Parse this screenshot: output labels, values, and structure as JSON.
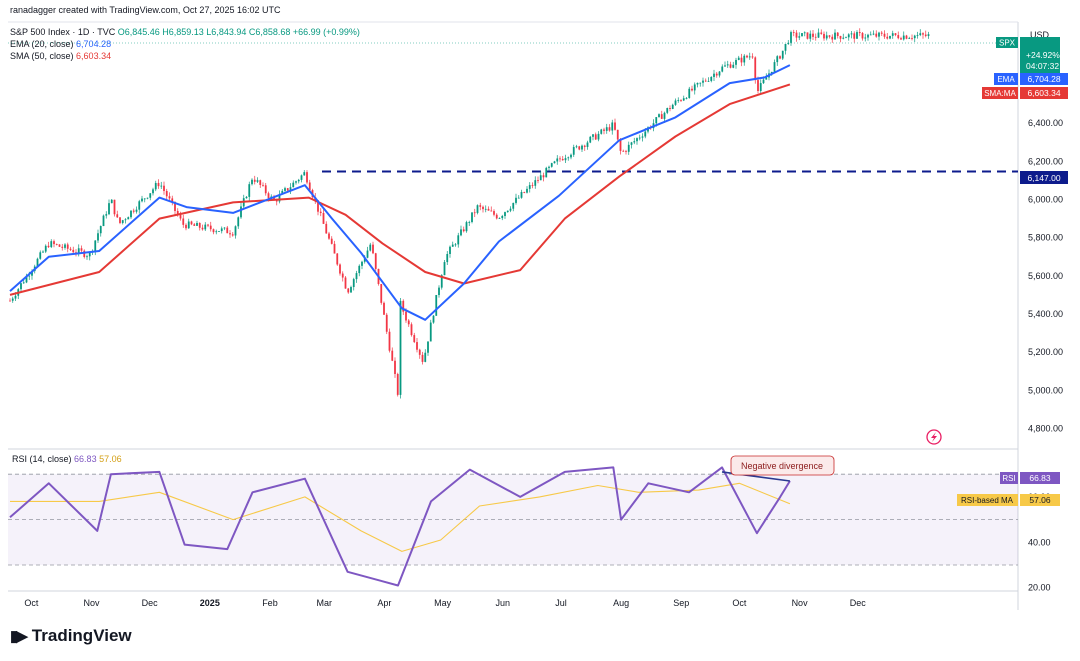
{
  "header": {
    "credit": "ranadagger created with TradingView.com, Oct 27, 2025 16:02 UTC"
  },
  "legend": {
    "instrument": "S&P 500 Index · 1D · TVC",
    "ohlc": "O6,845.46 H6,859.13 L6,843.94 C6,858.68 +66.99 (+0.99%)",
    "ema_label": "EMA (20, close)",
    "ema_value": "6,704.28",
    "sma_label": "SMA (50, close)",
    "sma_value": "6,603.34"
  },
  "price_axis": {
    "currency": "USD",
    "ticks": [
      "6,400.00",
      "6,200.00",
      "6,000.00",
      "5,800.00",
      "5,600.00",
      "5,400.00",
      "5,200.00",
      "5,000.00",
      "4,800.00"
    ],
    "badges": {
      "symbol": "SPX",
      "change_pct": "+24.92%",
      "countdown": "04:07:32",
      "ema_tag": "EMA",
      "ema_value": "6,704.28",
      "sma_tag": "SMA:MA",
      "sma_value": "6,603.34",
      "level_value": "6,147.00"
    }
  },
  "rsi": {
    "label": "RSI (14, close)",
    "value": "66.83",
    "ma_value": "57.06",
    "tag": "RSI",
    "ma_tag": "RSI-based MA",
    "ticks": [
      "60.00",
      "40.00",
      "20.00"
    ],
    "annotation": "Negative divergence"
  },
  "time_axis": [
    "Oct",
    "Nov",
    "Dec",
    "2025",
    "Feb",
    "Mar",
    "Apr",
    "May",
    "Jun",
    "Jul",
    "Aug",
    "Sep",
    "Oct",
    "Nov",
    "Dec"
  ],
  "branding": {
    "name": "TradingView"
  },
  "colors": {
    "up": "#089981",
    "down": "#f23645",
    "ema": "#2962ff",
    "sma": "#e53935",
    "rsi": "#7e57c2",
    "rsi_ma": "#f7c948",
    "level": "#0d1b8c"
  },
  "chart_data": {
    "type": "candlestick",
    "price_ylim": [
      4740,
      6930
    ],
    "horizontal_level": 6147,
    "series": [
      {
        "name": "EMA (20, close)",
        "points": [
          [
            "2024-09-20",
            5520
          ],
          [
            "2024-10-10",
            5700
          ],
          [
            "2024-11-05",
            5730
          ],
          [
            "2024-12-06",
            6010
          ],
          [
            "2024-12-20",
            5960
          ],
          [
            "2025-01-13",
            5930
          ],
          [
            "2025-02-19",
            6075
          ],
          [
            "2025-03-05",
            5900
          ],
          [
            "2025-03-20",
            5720
          ],
          [
            "2025-04-10",
            5430
          ],
          [
            "2025-04-22",
            5370
          ],
          [
            "2025-05-12",
            5560
          ],
          [
            "2025-05-30",
            5780
          ],
          [
            "2025-06-30",
            6020
          ],
          [
            "2025-07-31",
            6310
          ],
          [
            "2025-08-29",
            6430
          ],
          [
            "2025-09-26",
            6610
          ],
          [
            "2025-10-14",
            6640
          ],
          [
            "2025-10-27",
            6704
          ]
        ]
      },
      {
        "name": "SMA (50, close)",
        "points": [
          [
            "2024-09-20",
            5500
          ],
          [
            "2024-11-05",
            5620
          ],
          [
            "2024-12-06",
            5900
          ],
          [
            "2025-01-13",
            5985
          ],
          [
            "2025-02-21",
            6010
          ],
          [
            "2025-03-12",
            5920
          ],
          [
            "2025-03-31",
            5770
          ],
          [
            "2025-04-22",
            5620
          ],
          [
            "2025-05-12",
            5560
          ],
          [
            "2025-06-10",
            5630
          ],
          [
            "2025-07-03",
            5900
          ],
          [
            "2025-07-31",
            6120
          ],
          [
            "2025-08-29",
            6330
          ],
          [
            "2025-09-26",
            6500
          ],
          [
            "2025-10-27",
            6603
          ]
        ]
      }
    ],
    "rsi_series": [
      {
        "name": "RSI (14, close)",
        "points": [
          [
            "2024-09-20",
            51
          ],
          [
            "2024-10-10",
            66
          ],
          [
            "2024-11-04",
            45
          ],
          [
            "2024-11-11",
            70
          ],
          [
            "2024-12-06",
            71
          ],
          [
            "2024-12-19",
            39
          ],
          [
            "2025-01-10",
            37
          ],
          [
            "2025-01-23",
            62
          ],
          [
            "2025-02-19",
            68
          ],
          [
            "2025-03-13",
            27
          ],
          [
            "2025-04-08",
            21
          ],
          [
            "2025-04-25",
            58
          ],
          [
            "2025-05-15",
            72
          ],
          [
            "2025-06-10",
            60
          ],
          [
            "2025-07-03",
            71
          ],
          [
            "2025-07-28",
            73
          ],
          [
            "2025-08-01",
            50
          ],
          [
            "2025-08-15",
            66
          ],
          [
            "2025-09-05",
            62
          ],
          [
            "2025-09-22",
            73
          ],
          [
            "2025-10-10",
            44
          ],
          [
            "2025-10-22",
            60
          ],
          [
            "2025-10-27",
            67
          ]
        ]
      },
      {
        "name": "RSI-based MA",
        "points": [
          [
            "2024-09-20",
            58
          ],
          [
            "2024-11-05",
            58
          ],
          [
            "2024-12-06",
            62
          ],
          [
            "2025-01-13",
            50
          ],
          [
            "2025-02-19",
            60
          ],
          [
            "2025-03-20",
            45
          ],
          [
            "2025-04-10",
            36
          ],
          [
            "2025-04-30",
            41
          ],
          [
            "2025-05-20",
            56
          ],
          [
            "2025-06-20",
            60
          ],
          [
            "2025-07-20",
            65
          ],
          [
            "2025-08-10",
            62
          ],
          [
            "2025-09-10",
            63
          ],
          [
            "2025-10-01",
            66
          ],
          [
            "2025-10-27",
            57
          ]
        ]
      }
    ],
    "rsi_ylim": [
      19,
      78
    ],
    "rsi_levels": [
      70,
      50,
      30
    ],
    "divergence_line": [
      [
        "2025-09-22",
        71
      ],
      [
        "2025-10-27",
        67
      ]
    ]
  }
}
